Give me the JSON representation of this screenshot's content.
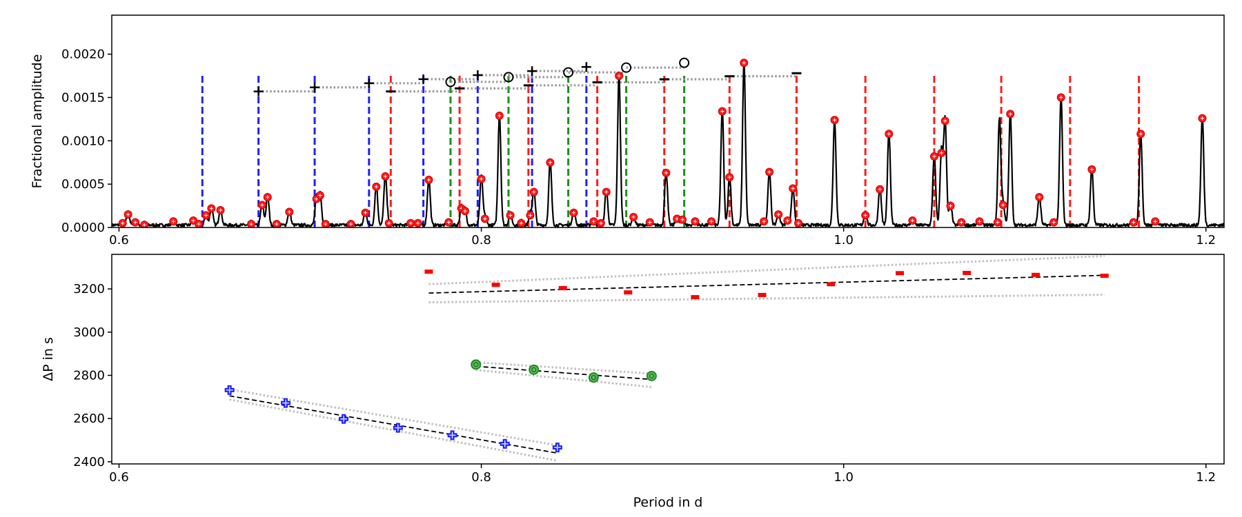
{
  "chart_data": [
    {
      "type": "line",
      "panel": "top",
      "ylabel": "Fractional amplitude",
      "xlabel": "",
      "xlim": [
        0.596,
        1.21
      ],
      "ylim": [
        0.0,
        0.00245
      ],
      "xticks": [
        "0.6",
        "0.8",
        "1.0",
        "1.2"
      ],
      "yticks": [
        "0.0000",
        "0.0005",
        "0.0010",
        "0.0015",
        "0.0020"
      ],
      "peaks": [
        {
          "x": 0.602,
          "y": 5e-05
        },
        {
          "x": 0.605,
          "y": 0.00015
        },
        {
          "x": 0.609,
          "y": 6e-05
        },
        {
          "x": 0.614,
          "y": 3e-05
        },
        {
          "x": 0.63,
          "y": 7e-05
        },
        {
          "x": 0.641,
          "y": 8e-05
        },
        {
          "x": 0.644,
          "y": 4e-05
        },
        {
          "x": 0.648,
          "y": 0.00014
        },
        {
          "x": 0.651,
          "y": 0.00022
        },
        {
          "x": 0.656,
          "y": 0.0002
        },
        {
          "x": 0.673,
          "y": 4e-05
        },
        {
          "x": 0.679,
          "y": 0.00026
        },
        {
          "x": 0.682,
          "y": 0.00035
        },
        {
          "x": 0.687,
          "y": 4e-05
        },
        {
          "x": 0.694,
          "y": 0.00018
        },
        {
          "x": 0.709,
          "y": 0.00033
        },
        {
          "x": 0.711,
          "y": 0.00037
        },
        {
          "x": 0.714,
          "y": 4e-05
        },
        {
          "x": 0.728,
          "y": 4e-05
        },
        {
          "x": 0.736,
          "y": 0.00017
        },
        {
          "x": 0.742,
          "y": 0.00047
        },
        {
          "x": 0.747,
          "y": 0.00059
        },
        {
          "x": 0.749,
          "y": 5e-05
        },
        {
          "x": 0.761,
          "y": 5e-05
        },
        {
          "x": 0.765,
          "y": 5e-05
        },
        {
          "x": 0.771,
          "y": 0.00055
        },
        {
          "x": 0.782,
          "y": 6e-05
        },
        {
          "x": 0.789,
          "y": 0.00022
        },
        {
          "x": 0.791,
          "y": 0.00019
        },
        {
          "x": 0.8,
          "y": 0.00056
        },
        {
          "x": 0.802,
          "y": 0.0001
        },
        {
          "x": 0.81,
          "y": 0.00129
        },
        {
          "x": 0.816,
          "y": 0.00014
        },
        {
          "x": 0.822,
          "y": 5e-05
        },
        {
          "x": 0.827,
          "y": 0.00014
        },
        {
          "x": 0.829,
          "y": 0.00041
        },
        {
          "x": 0.838,
          "y": 0.00075
        },
        {
          "x": 0.851,
          "y": 0.00017
        },
        {
          "x": 0.862,
          "y": 7e-05
        },
        {
          "x": 0.866,
          "y": 5e-05
        },
        {
          "x": 0.869,
          "y": 0.00041
        },
        {
          "x": 0.876,
          "y": 0.00175
        },
        {
          "x": 0.884,
          "y": 0.00012
        },
        {
          "x": 0.893,
          "y": 6e-05
        },
        {
          "x": 0.902,
          "y": 0.00063
        },
        {
          "x": 0.908,
          "y": 0.0001
        },
        {
          "x": 0.911,
          "y": 9e-05
        },
        {
          "x": 0.918,
          "y": 7e-05
        },
        {
          "x": 0.927,
          "y": 7e-05
        },
        {
          "x": 0.933,
          "y": 0.00134
        },
        {
          "x": 0.937,
          "y": 0.00058
        },
        {
          "x": 0.945,
          "y": 0.0019
        },
        {
          "x": 0.956,
          "y": 7e-05
        },
        {
          "x": 0.959,
          "y": 0.00064
        },
        {
          "x": 0.964,
          "y": 0.00015
        },
        {
          "x": 0.969,
          "y": 8e-05
        },
        {
          "x": 0.972,
          "y": 0.00045
        },
        {
          "x": 0.975,
          "y": 5e-05
        },
        {
          "x": 0.995,
          "y": 0.00124
        },
        {
          "x": 1.012,
          "y": 0.00014
        },
        {
          "x": 1.02,
          "y": 0.00044
        },
        {
          "x": 1.025,
          "y": 0.00108
        },
        {
          "x": 1.038,
          "y": 8e-05
        },
        {
          "x": 1.05,
          "y": 0.00082
        },
        {
          "x": 1.054,
          "y": 0.00086
        },
        {
          "x": 1.056,
          "y": 0.00123
        },
        {
          "x": 1.059,
          "y": 0.00025
        },
        {
          "x": 1.065,
          "y": 6e-05
        },
        {
          "x": 1.075,
          "y": 7e-05
        },
        {
          "x": 1.085,
          "y": 6e-05
        },
        {
          "x": 1.088,
          "y": 0.00026
        },
        {
          "x": 1.092,
          "y": 0.00131
        },
        {
          "x": 1.108,
          "y": 0.00035
        },
        {
          "x": 1.116,
          "y": 6e-05
        },
        {
          "x": 1.12,
          "y": 0.0015
        },
        {
          "x": 1.137,
          "y": 0.00067
        },
        {
          "x": 1.16,
          "y": 6e-05
        },
        {
          "x": 1.164,
          "y": 0.00108
        },
        {
          "x": 1.172,
          "y": 7e-05
        },
        {
          "x": 1.198,
          "y": 0.00126
        }
      ],
      "unmarked_peaks": [
        {
          "x": 1.086,
          "y": 0.00121
        }
      ],
      "vlines": {
        "blue": [
          0.646,
          0.677,
          0.708,
          0.738,
          0.768,
          0.798,
          0.828,
          0.858
        ],
        "green": [
          0.783,
          0.815,
          0.848,
          0.88,
          0.912
        ],
        "red": [
          0.75,
          0.788,
          0.826,
          0.864,
          0.901,
          0.937,
          0.974,
          1.012,
          1.05,
          1.087,
          1.125,
          1.163
        ],
        "ymax": 0.00175
      },
      "echelle_tracks": [
        {
          "marker": "plus",
          "color": "#000000",
          "y_start": 0.00157,
          "y_step": 4.7e-05,
          "x_start": 0.677,
          "x_end": 0.858
        },
        {
          "marker": "circle",
          "color": "#000000",
          "y_start": 0.00168,
          "y_step": 5.5e-05,
          "x_start": 0.783,
          "x_end": 0.912
        },
        {
          "marker": "minus",
          "color": "#000000",
          "y_start": 0.00157,
          "y_step": 3.5e-05,
          "x_start": 0.75,
          "x_end": 0.974
        }
      ]
    },
    {
      "type": "scatter",
      "panel": "bottom",
      "xlabel": "Period in d",
      "ylabel": "ΔP in s",
      "xlim": [
        0.596,
        1.21
      ],
      "ylim": [
        2390,
        3360
      ],
      "xticks": [
        "0.6",
        "0.8",
        "1.0",
        "1.2"
      ],
      "yticks": [
        "2400",
        "2600",
        "2800",
        "3000",
        "3200"
      ],
      "series": [
        {
          "marker": "plus",
          "color": "#1f1fff",
          "x": [
            0.661,
            0.692,
            0.724,
            0.754,
            0.784,
            0.813,
            0.842
          ],
          "y": [
            2732,
            2672,
            2598,
            2557,
            2523,
            2483,
            2466
          ],
          "fit": {
            "x": [
              0.661,
              0.842
            ],
            "y": [
              2705,
              2440
            ]
          },
          "band_upper": {
            "x": [
              0.661,
              0.842
            ],
            "y": [
              2735,
              2476
            ]
          },
          "band_lower": {
            "x": [
              0.661,
              0.842
            ],
            "y": [
              2688,
              2405
            ]
          }
        },
        {
          "marker": "circle",
          "color": "#1a8f1a",
          "x": [
            0.797,
            0.829,
            0.862,
            0.894
          ],
          "y": [
            2850,
            2826,
            2790,
            2797
          ],
          "fit": {
            "x": [
              0.797,
              0.894
            ],
            "y": [
              2842,
              2781
            ]
          },
          "band_upper": {
            "x": [
              0.797,
              0.894
            ],
            "y": [
              2860,
              2808
            ]
          },
          "band_lower": {
            "x": [
              0.797,
              0.894
            ],
            "y": [
              2825,
              2746
            ]
          }
        },
        {
          "marker": "dash",
          "color": "#ff0000",
          "x": [
            0.771,
            0.808,
            0.845,
            0.881,
            0.918,
            0.955,
            0.993,
            1.031,
            1.068,
            1.106,
            1.144
          ],
          "y": [
            3280,
            3219,
            3204,
            3184,
            3162,
            3172,
            3222,
            3273,
            3274,
            3265,
            3261
          ],
          "fit": {
            "x": [
              0.771,
              1.144
            ],
            "y": [
              3181,
              3263
            ]
          },
          "band_upper": {
            "x": [
              0.771,
              1.144
            ],
            "y": [
              3222,
              3352
            ]
          },
          "band_lower": {
            "x": [
              0.771,
              1.144
            ],
            "y": [
              3138,
              3173
            ]
          }
        }
      ]
    }
  ]
}
